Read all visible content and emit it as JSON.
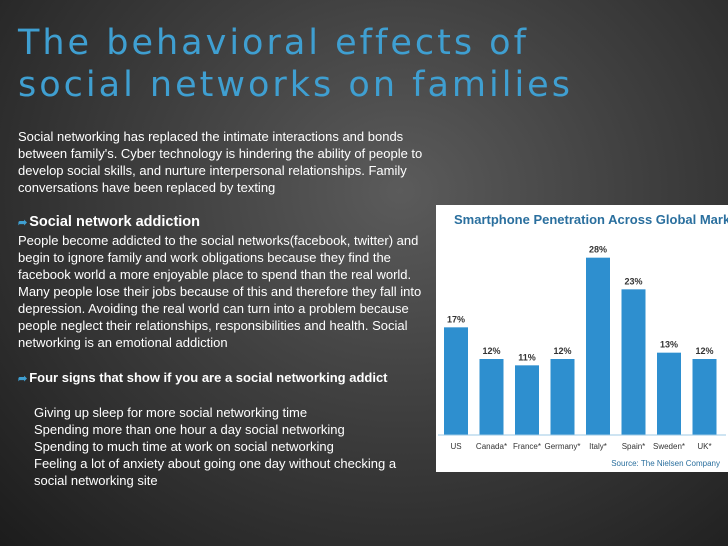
{
  "slide": {
    "title": "The behavioral effects of social networks on families",
    "intro": "Social networking has replaced the intimate interactions and bonds between family's. Cyber technology is hindering the ability of people to develop social skills, and nurture interpersonal relationships. Family conversations have been replaced by texting",
    "addiction_heading": "Social network addiction",
    "addiction_text": "People become addicted to the social networks(facebook, twitter) and begin to ignore family and work obligations because they find the facebook world a more enjoyable place to spend than the real world. Many people lose their jobs because of this and therefore they fall into depression. Avoiding the real world can turn into a problem because people neglect their relationships, responsibilities and health. Social networking is an emotional addiction",
    "signs_heading": "Four signs that show if you are a social networking addict",
    "signs": [
      "Giving up sleep for more social networking time",
      "Spending more than one hour a day social networking",
      "Spending to much time at work on social networking",
      "Feeling a lot of anxiety about going one day without  checking a social networking site"
    ],
    "bullet_icon": "arrow-bullet-icon"
  },
  "chart_data": {
    "type": "bar",
    "title": "Smartphone Penetration Across Global Markets",
    "categories": [
      "US",
      "Canada*",
      "France*",
      "Germany*",
      "Italy*",
      "Spain*",
      "Sweden*",
      "UK*"
    ],
    "values": [
      17,
      12,
      11,
      12,
      28,
      23,
      13,
      12
    ],
    "value_labels": [
      "17%",
      "12%",
      "11%",
      "12%",
      "28%",
      "23%",
      "13%",
      "12%"
    ],
    "source": "Source: The Nielsen Company",
    "ylim": [
      0,
      30
    ],
    "grid": false,
    "bar_color": "#2e8fcf"
  },
  "colors": {
    "title": "#3f9fd1",
    "text": "#ffffff",
    "chart_title": "#2a6f9e"
  }
}
